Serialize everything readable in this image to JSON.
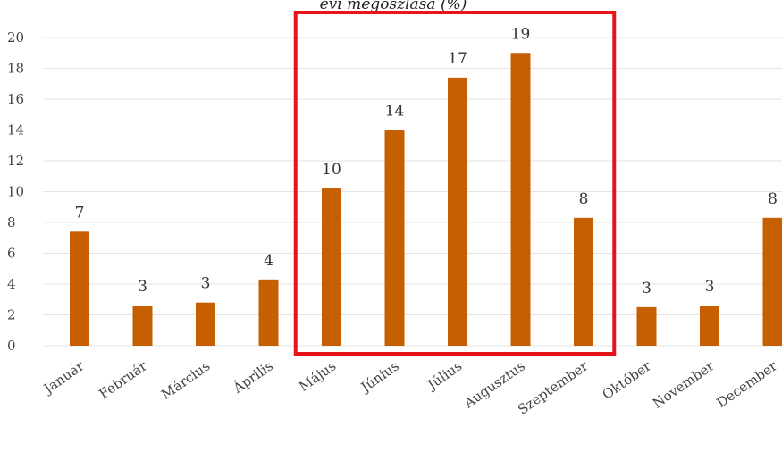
{
  "chart_data": {
    "type": "bar",
    "title": "évi megoszlása (%)",
    "categories": [
      "Január",
      "Február",
      "Március",
      "Április",
      "Május",
      "Június",
      "Július",
      "Augusztus",
      "Szeptember",
      "Október",
      "November",
      "December"
    ],
    "values": [
      7.4,
      2.6,
      2.8,
      4.3,
      10.2,
      14.0,
      17.4,
      19.0,
      8.3,
      2.5,
      2.6,
      8.3
    ],
    "data_labels": [
      "7",
      "3",
      "3",
      "4",
      "10",
      "14",
      "17",
      "19",
      "8",
      "3",
      "3",
      "8"
    ],
    "ylim": [
      0,
      20
    ],
    "yticks": [
      0,
      2,
      4,
      6,
      8,
      10,
      12,
      14,
      16,
      18,
      20
    ],
    "grid": true,
    "bar_color": "#c65f00",
    "highlight": {
      "from_category": "Május",
      "to_category": "Szeptember",
      "color": "#e8141a"
    }
  }
}
